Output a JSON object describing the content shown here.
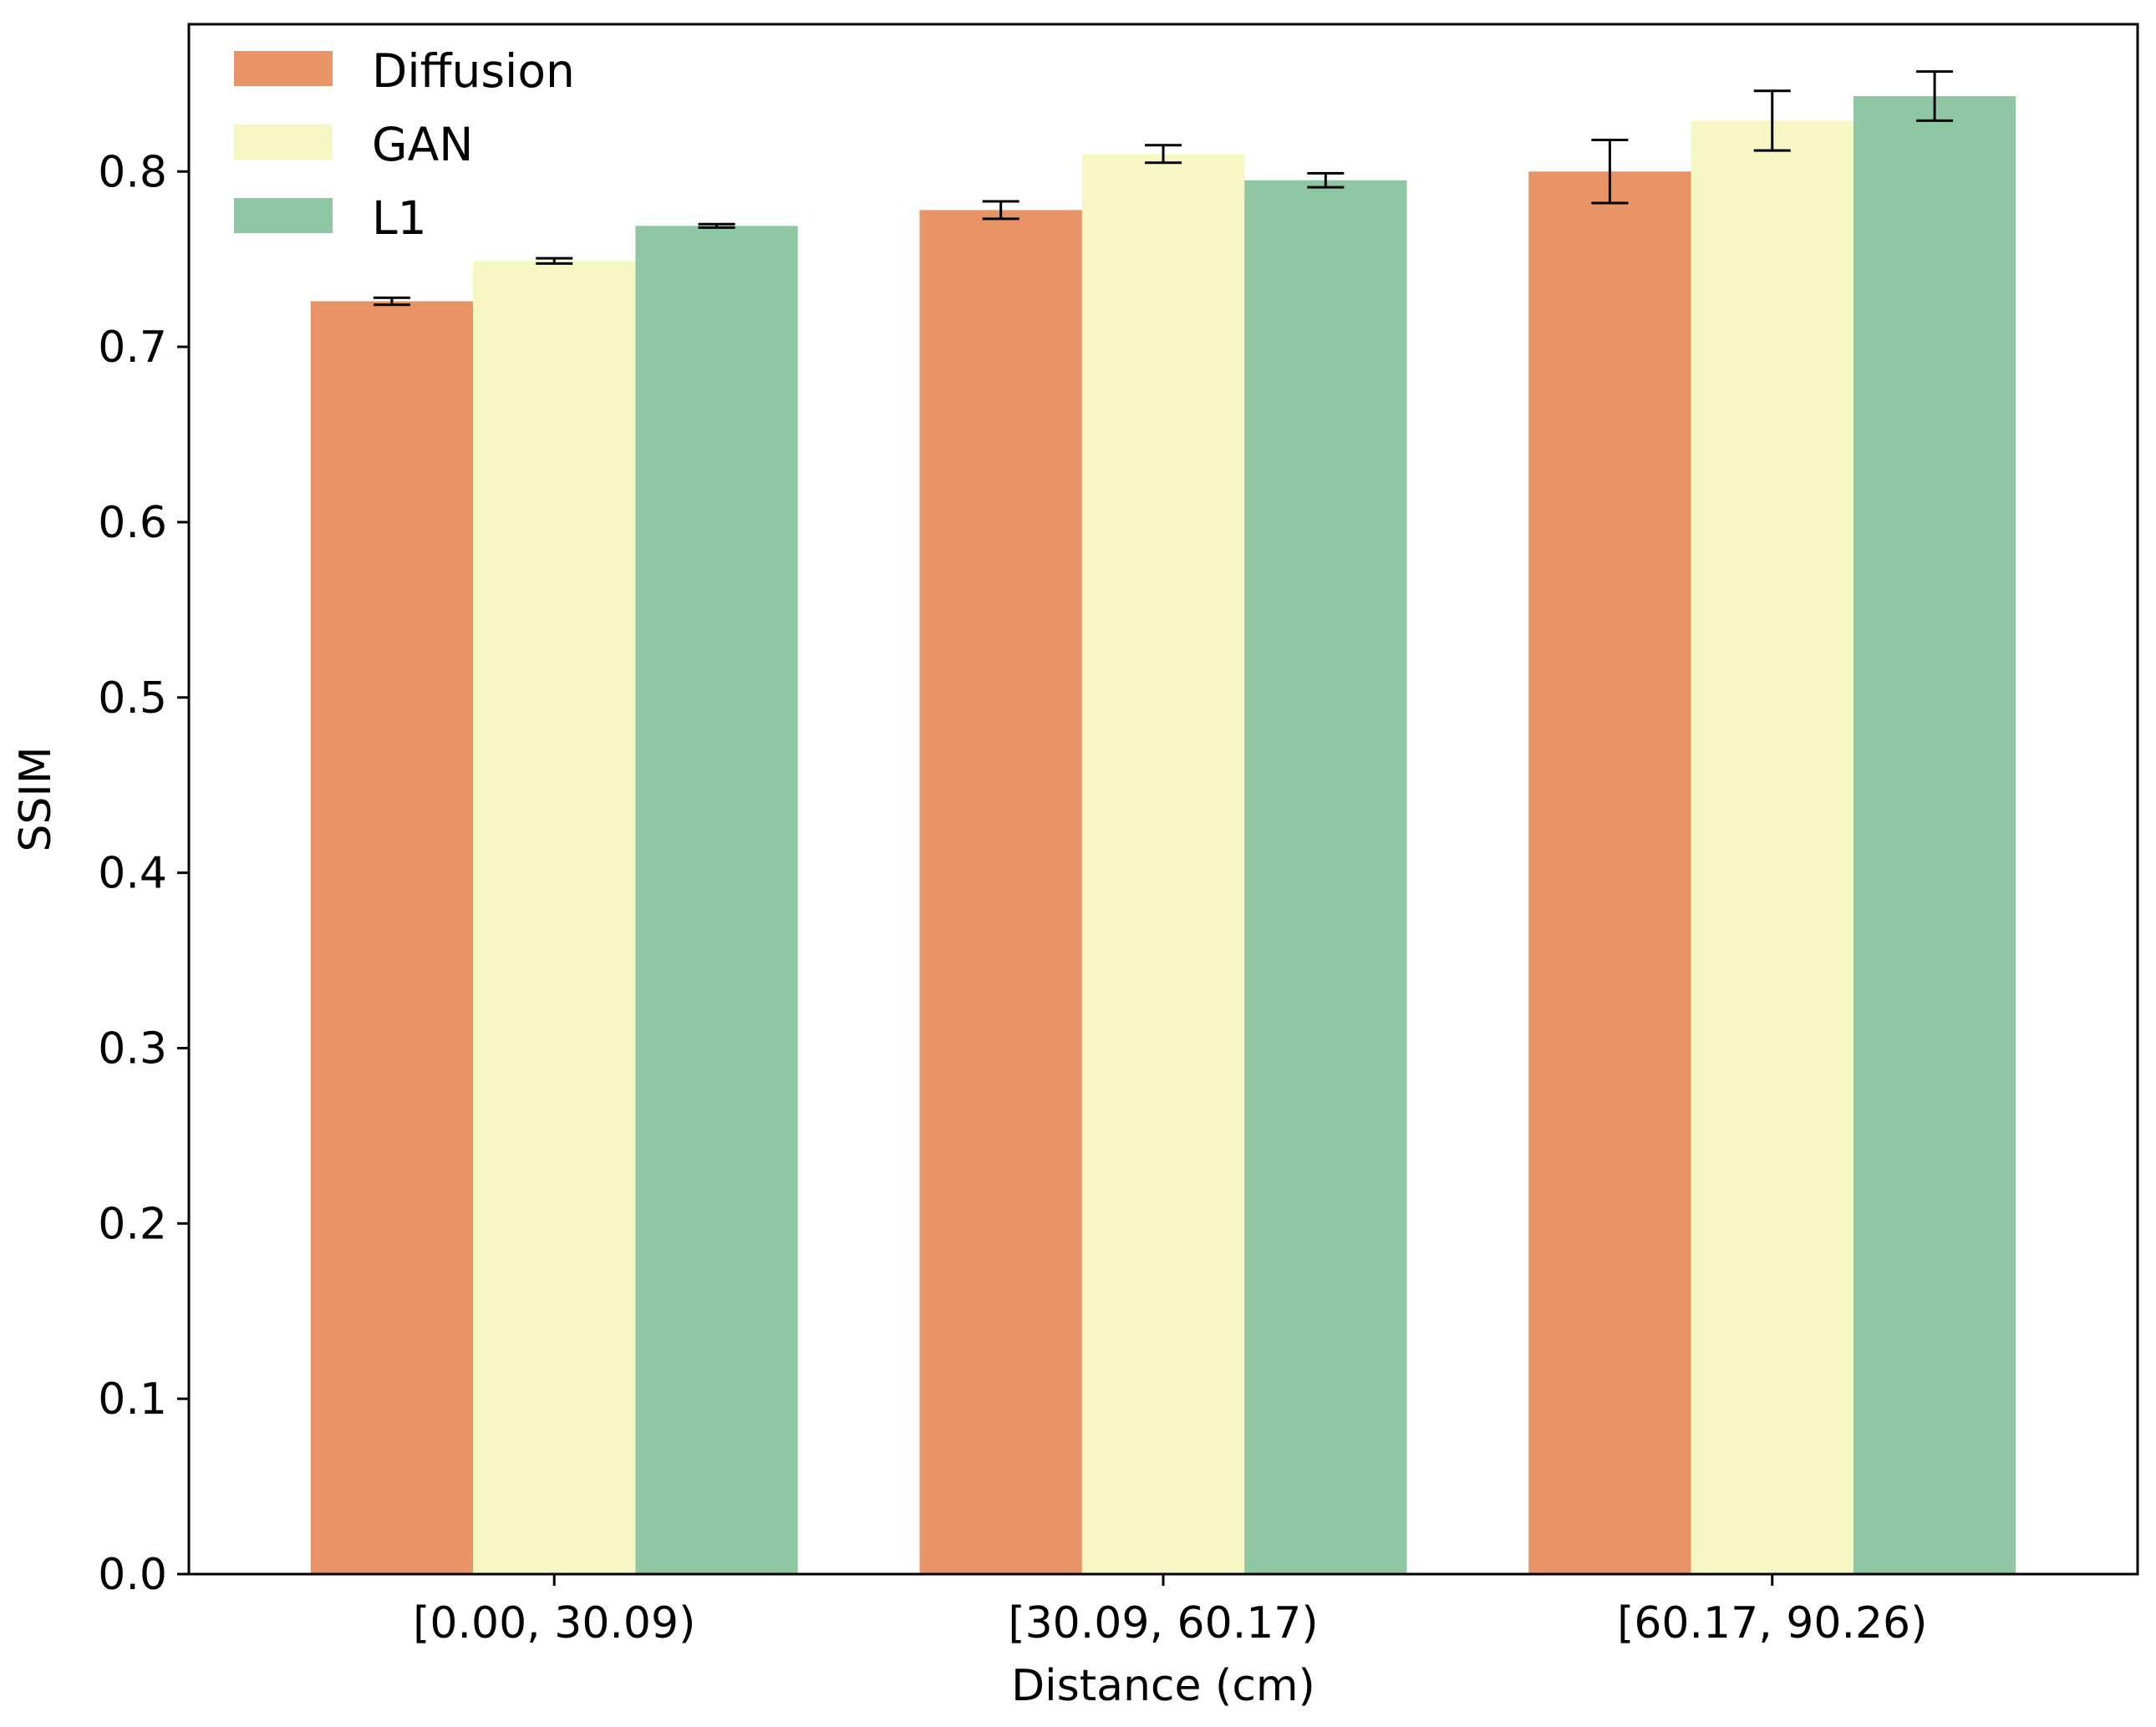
{
  "chart_data": {
    "type": "bar",
    "title": "",
    "xlabel": "Distance (cm)",
    "ylabel": "SSIM",
    "categories": [
      "[0.00, 30.09)",
      "[30.09, 60.17)",
      "[60.17, 90.26)"
    ],
    "ylim": [
      0,
      0.884
    ],
    "yticks": [
      "0.0",
      "0.1",
      "0.2",
      "0.3",
      "0.4",
      "0.5",
      "0.6",
      "0.7",
      "0.8"
    ],
    "grid": false,
    "legend_position": "top-left",
    "series": [
      {
        "name": "Diffusion",
        "color": "#e89466",
        "values": [
          0.726,
          0.778,
          0.8
        ],
        "errors": [
          0.002,
          0.005,
          0.018
        ]
      },
      {
        "name": "GAN",
        "color": "#f7f7c4",
        "values": [
          0.749,
          0.81,
          0.829
        ],
        "errors": [
          0.0015,
          0.005,
          0.017
        ]
      },
      {
        "name": "L1",
        "color": "#8fc7a5",
        "values": [
          0.769,
          0.795,
          0.843
        ],
        "errors": [
          0.001,
          0.004,
          0.014
        ]
      }
    ]
  }
}
